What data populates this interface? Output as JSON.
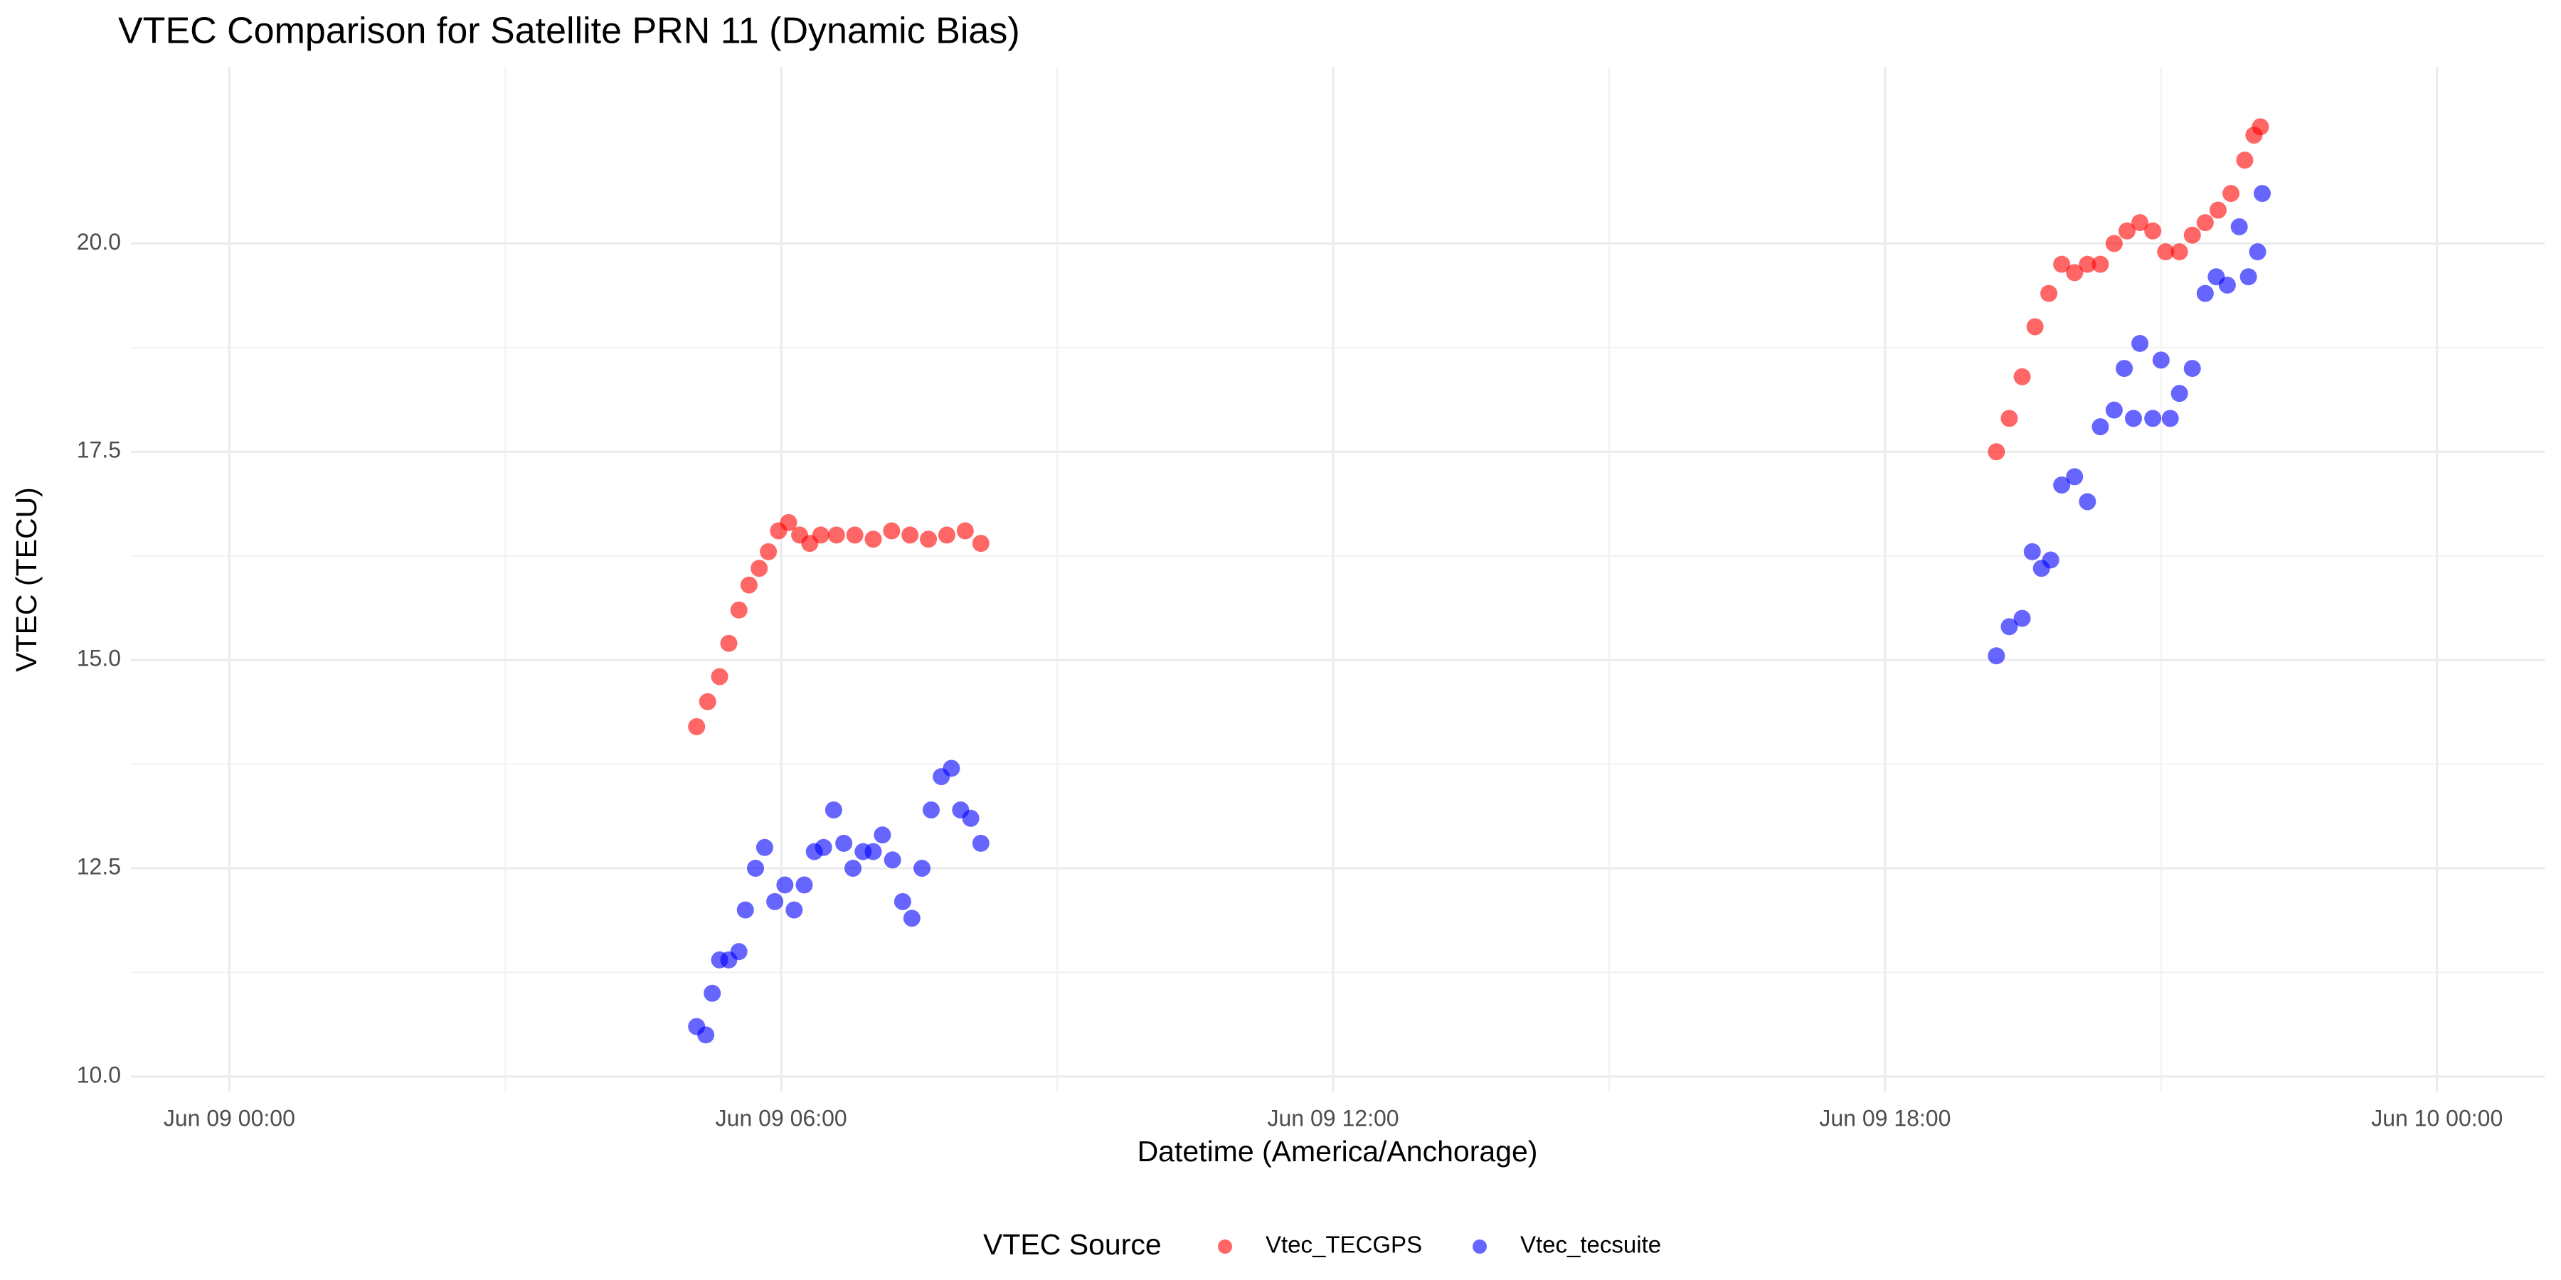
{
  "chart_data": {
    "type": "scatter",
    "title": "VTEC Comparison for Satellite PRN 11 (Dynamic Bias)",
    "x_label": "Datetime (America/Anchorage)",
    "y_label": "VTEC (TECU)",
    "legend_title": "VTEC Source",
    "legend": "bottom",
    "grid": true,
    "xlim": [
      -1.07,
      25.17
    ],
    "ylim": [
      9.82,
      22.12
    ],
    "xticks": [
      {
        "value": 0,
        "label": "Jun 09 00:00"
      },
      {
        "value": 6,
        "label": "Jun 09 06:00"
      },
      {
        "value": 12,
        "label": "Jun 09 12:00"
      },
      {
        "value": 18,
        "label": "Jun 09 18:00"
      },
      {
        "value": 24,
        "label": "Jun 10 00:00"
      }
    ],
    "yticks": [
      {
        "value": 10,
        "label": "10.0"
      },
      {
        "value": 12.5,
        "label": "12.5"
      },
      {
        "value": 15,
        "label": "15.0"
      },
      {
        "value": 17.5,
        "label": "17.5"
      },
      {
        "value": 20,
        "label": "20.0"
      }
    ],
    "series": [
      {
        "name": "Vtec_TECGPS",
        "color": "red",
        "x": [
          5.08,
          5.2,
          5.33,
          5.43,
          5.54,
          5.65,
          5.76,
          5.86,
          5.97,
          6.08,
          6.2,
          6.31,
          6.43,
          6.6,
          6.8,
          7.0,
          7.2,
          7.4,
          7.6,
          7.8,
          8.0,
          8.17,
          19.21,
          19.35,
          19.49,
          19.63,
          19.78,
          19.92,
          20.06,
          20.2,
          20.34,
          20.49,
          20.63,
          20.77,
          20.91,
          21.05,
          21.2,
          21.34,
          21.48,
          21.62,
          21.76,
          21.91,
          22.01,
          22.08
        ],
        "values": [
          14.2,
          14.5,
          14.8,
          15.2,
          15.6,
          15.9,
          16.1,
          16.3,
          16.55,
          16.65,
          16.5,
          16.4,
          16.5,
          16.5,
          16.5,
          16.45,
          16.55,
          16.5,
          16.45,
          16.5,
          16.55,
          16.4,
          17.5,
          17.9,
          18.4,
          19.0,
          19.4,
          19.75,
          19.65,
          19.75,
          19.75,
          20.0,
          20.15,
          20.25,
          20.15,
          19.9,
          19.9,
          20.1,
          20.25,
          20.4,
          20.6,
          21.0,
          21.3,
          21.4
        ]
      },
      {
        "name": "Vtec_tecsuite",
        "color": "blue",
        "x": [
          5.08,
          5.18,
          5.25,
          5.33,
          5.43,
          5.54,
          5.61,
          5.72,
          5.82,
          5.93,
          6.04,
          6.14,
          6.25,
          6.36,
          6.46,
          6.57,
          6.68,
          6.78,
          6.89,
          7.0,
          7.1,
          7.21,
          7.32,
          7.42,
          7.53,
          7.63,
          7.74,
          7.85,
          7.95,
          8.06,
          8.17,
          19.21,
          19.35,
          19.49,
          19.6,
          19.7,
          19.8,
          19.92,
          20.06,
          20.2,
          20.34,
          20.49,
          20.6,
          20.7,
          20.77,
          20.91,
          21.0,
          21.1,
          21.2,
          21.34,
          21.48,
          21.6,
          21.72,
          21.85,
          21.95,
          22.05,
          22.1
        ],
        "values": [
          10.6,
          10.5,
          11.0,
          11.4,
          11.4,
          11.5,
          12.0,
          12.5,
          12.75,
          12.1,
          12.3,
          12.0,
          12.3,
          12.7,
          12.75,
          13.2,
          12.8,
          12.5,
          12.7,
          12.7,
          12.9,
          12.6,
          12.1,
          11.9,
          12.5,
          13.2,
          13.6,
          13.7,
          13.2,
          13.1,
          12.8,
          15.05,
          15.4,
          15.5,
          16.3,
          16.1,
          16.2,
          17.1,
          17.2,
          16.9,
          17.8,
          18.0,
          18.5,
          17.9,
          18.8,
          17.9,
          18.6,
          17.9,
          18.2,
          18.5,
          19.4,
          19.6,
          19.5,
          20.2,
          19.6,
          19.9,
          20.6
        ]
      }
    ]
  }
}
